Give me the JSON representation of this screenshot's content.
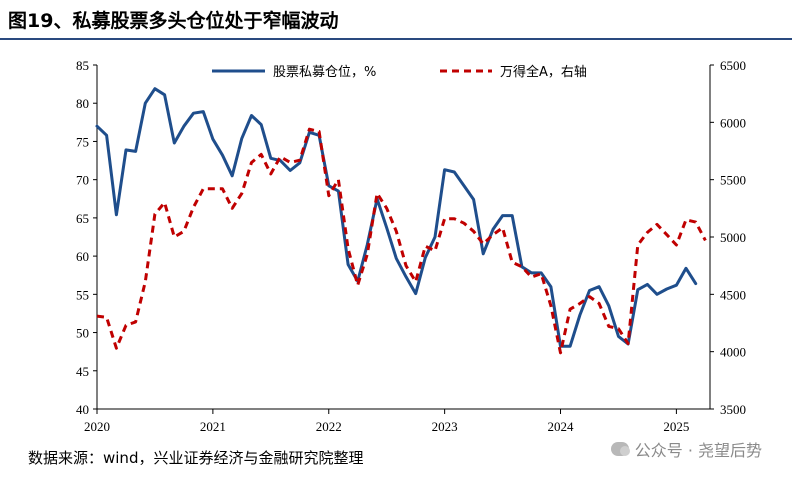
{
  "title": "图19、私募股票多头仓位处于窄幅波动",
  "source": "数据来源：wind，兴业证券经济与金融研究院整理",
  "watermark": "公众号 · 尧望后势",
  "chart_data": {
    "type": "line",
    "title": "图19、私募股票多头仓位处于窄幅波动",
    "x_ticks": [
      "2020",
      "2021",
      "2022",
      "2023",
      "2024",
      "2025"
    ],
    "x_start": 2020.0,
    "x_end": 2025.29,
    "y_left": {
      "min": 40,
      "max": 85,
      "ticks": [
        40,
        45,
        50,
        55,
        60,
        65,
        70,
        75,
        80,
        85
      ]
    },
    "y_right": {
      "min": 3500,
      "max": 6500,
      "ticks": [
        3500,
        4000,
        4500,
        5000,
        5500,
        6000,
        6500
      ]
    },
    "series": [
      {
        "name": "股票私募仓位，%",
        "axis": "left",
        "color": "#1f4e8c",
        "style": "solid",
        "x": [
          2020.0,
          2020.083,
          2020.167,
          2020.25,
          2020.333,
          2020.417,
          2020.5,
          2020.583,
          2020.667,
          2020.75,
          2020.833,
          2020.917,
          2021.0,
          2021.083,
          2021.167,
          2021.25,
          2021.333,
          2021.417,
          2021.5,
          2021.583,
          2021.667,
          2021.75,
          2021.833,
          2021.917,
          2022.0,
          2022.083,
          2022.167,
          2022.25,
          2022.333,
          2022.417,
          2022.5,
          2022.583,
          2022.667,
          2022.75,
          2022.833,
          2022.917,
          2023.0,
          2023.083,
          2023.167,
          2023.25,
          2023.333,
          2023.417,
          2023.5,
          2023.583,
          2023.667,
          2023.75,
          2023.833,
          2023.917,
          2024.0,
          2024.083,
          2024.167,
          2024.25,
          2024.333,
          2024.417,
          2024.5,
          2024.583,
          2024.667,
          2024.75,
          2024.833,
          2024.917,
          2025.0,
          2025.083,
          2025.167
        ],
        "values": [
          77.0,
          75.8,
          65.4,
          73.9,
          73.7,
          80.0,
          81.9,
          81.1,
          74.8,
          77.0,
          78.7,
          78.9,
          75.3,
          73.2,
          70.5,
          75.4,
          78.4,
          77.2,
          72.8,
          72.5,
          71.2,
          72.2,
          76.2,
          75.8,
          69.2,
          68.5,
          58.9,
          56.7,
          61.5,
          67.5,
          63.7,
          59.7,
          57.3,
          55.1,
          59.8,
          62.5,
          71.3,
          71.0,
          69.2,
          67.4,
          60.3,
          63.5,
          65.3,
          65.3,
          58.6,
          57.8,
          57.8,
          56.0,
          48.2,
          48.2,
          52.3,
          55.5,
          56.0,
          53.5,
          49.5,
          48.5,
          55.6,
          56.3,
          55.0,
          55.7,
          56.2,
          58.4,
          56.4
        ]
      },
      {
        "name": "万得全A，右轴",
        "axis": "right",
        "color": "#c00000",
        "style": "dashed",
        "x": [
          2020.0,
          2020.083,
          2020.167,
          2020.25,
          2020.333,
          2020.417,
          2020.5,
          2020.583,
          2020.667,
          2020.75,
          2020.833,
          2020.917,
          2021.0,
          2021.083,
          2021.167,
          2021.25,
          2021.333,
          2021.417,
          2021.5,
          2021.583,
          2021.667,
          2021.75,
          2021.833,
          2021.917,
          2022.0,
          2022.083,
          2022.167,
          2022.25,
          2022.333,
          2022.417,
          2022.5,
          2022.583,
          2022.667,
          2022.75,
          2022.833,
          2022.917,
          2023.0,
          2023.083,
          2023.167,
          2023.25,
          2023.333,
          2023.417,
          2023.5,
          2023.583,
          2023.667,
          2023.75,
          2023.833,
          2023.917,
          2024.0,
          2024.083,
          2024.167,
          2024.25,
          2024.333,
          2024.417,
          2024.5,
          2024.583,
          2024.667,
          2024.75,
          2024.833,
          2024.917,
          2025.0,
          2025.083,
          2025.167,
          2025.25
        ],
        "values": [
          4310,
          4300,
          4030,
          4230,
          4260,
          4610,
          5200,
          5300,
          5000,
          5050,
          5260,
          5420,
          5420,
          5420,
          5250,
          5380,
          5650,
          5720,
          5550,
          5700,
          5650,
          5670,
          5940,
          5920,
          5360,
          5500,
          4900,
          4580,
          4850,
          5380,
          5250,
          5050,
          4750,
          4610,
          4920,
          4880,
          5160,
          5160,
          5120,
          5050,
          4940,
          5020,
          5080,
          4780,
          4740,
          4650,
          4680,
          4400,
          3990,
          4370,
          4420,
          4480,
          4420,
          4220,
          4200,
          4070,
          4930,
          5040,
          5110,
          5020,
          4930,
          5150,
          5130,
          4970
        ]
      }
    ]
  }
}
